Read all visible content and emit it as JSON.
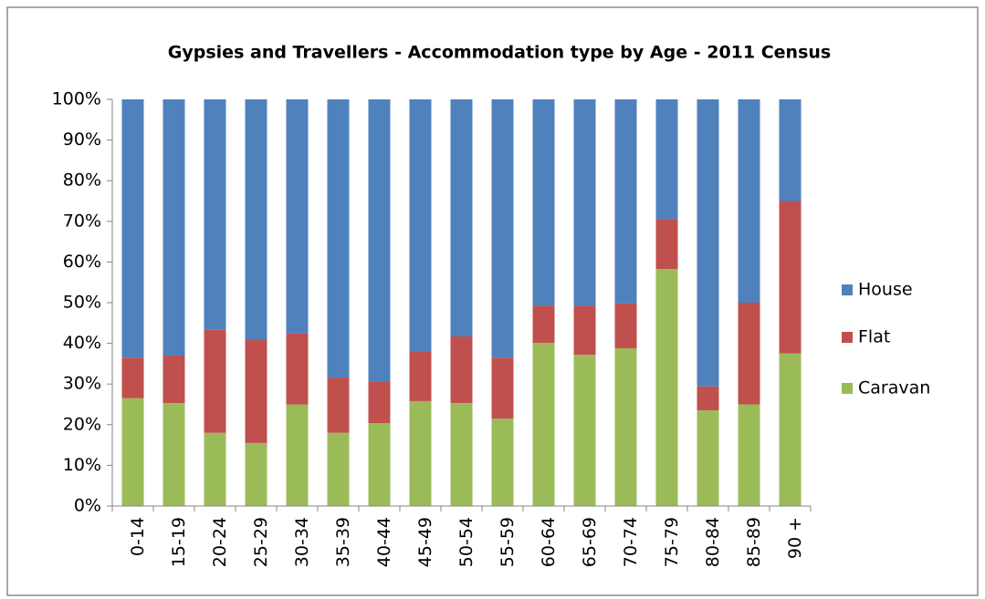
{
  "chart_data": {
    "type": "stacked_bar_100",
    "title": "Gypsies and Travellers - Accommodation type by Age - 2011 Census",
    "categories": [
      "0-14",
      "15-19",
      "20-24",
      "25-29",
      "30-34",
      "35-39",
      "40-44",
      "45-49",
      "50-54",
      "55-59",
      "60-64",
      "65-69",
      "70-74",
      "75-79",
      "80-84",
      "85-89",
      "90 +"
    ],
    "series": [
      {
        "name": "Caravan",
        "color": "#9bbb59",
        "values": [
          26.5,
          25.3,
          18,
          15.5,
          25,
          18,
          20.4,
          25.8,
          25.3,
          21.5,
          40.1,
          37.2,
          38.8,
          58.3,
          23.5,
          25,
          37.5
        ]
      },
      {
        "name": "Flat",
        "color": "#c0504d",
        "values": [
          10,
          11.7,
          25.3,
          25.3,
          17.4,
          13.6,
          10.3,
          12.3,
          16.4,
          15,
          9.2,
          12.1,
          11,
          12.3,
          5.9,
          25,
          37.5
        ]
      },
      {
        "name": "House",
        "color": "#4f81bd",
        "values": [
          63.5,
          63,
          56.7,
          59.2,
          57.6,
          68.4,
          69.3,
          61.9,
          58.3,
          63.5,
          50.7,
          50.7,
          50.2,
          29.4,
          70.6,
          50,
          25
        ]
      }
    ],
    "ylim": [
      0,
      100
    ],
    "yticks": [
      {
        "value": 0,
        "label": "0%"
      },
      {
        "value": 10,
        "label": "10%"
      },
      {
        "value": 20,
        "label": "20%"
      },
      {
        "value": 30,
        "label": "30%"
      },
      {
        "value": 40,
        "label": "40%"
      },
      {
        "value": 50,
        "label": "50%"
      },
      {
        "value": 60,
        "label": "60%"
      },
      {
        "value": 70,
        "label": "70%"
      },
      {
        "value": 80,
        "label": "80%"
      },
      {
        "value": 90,
        "label": "90%"
      },
      {
        "value": 100,
        "label": "100%"
      }
    ],
    "legend": "right"
  }
}
